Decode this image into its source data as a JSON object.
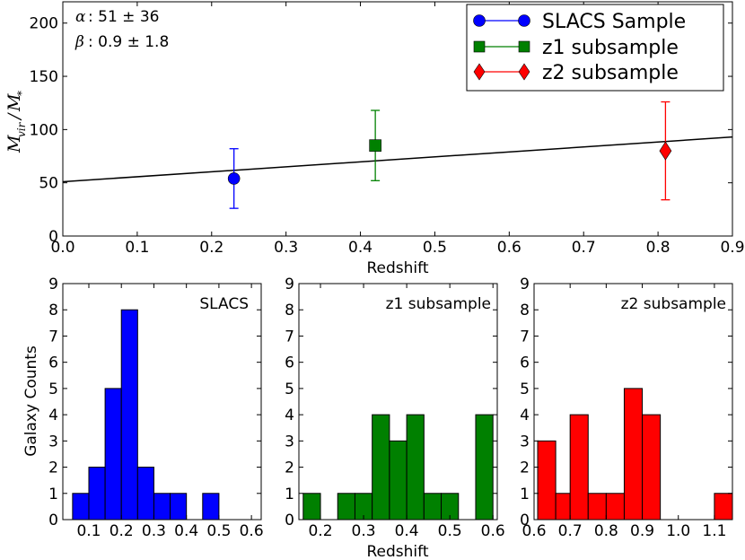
{
  "chart_data": [
    {
      "type": "scatter",
      "title": "",
      "xlabel": "Redshift",
      "ylabel": "M_vir / M_*",
      "xlim": [
        0.0,
        0.9
      ],
      "ylim": [
        0,
        220
      ],
      "xticks": [
        "0.0",
        "0.1",
        "0.2",
        "0.3",
        "0.4",
        "0.5",
        "0.6",
        "0.7",
        "0.8",
        "0.9"
      ],
      "yticks": [
        "0",
        "50",
        "100",
        "150",
        "200"
      ],
      "annotations": {
        "alpha_symbol": "α",
        "alpha_text": ":  51 ±  36",
        "beta_symbol": "β",
        "beta_text": ":  0.9 ±  1.8"
      },
      "fit_line": {
        "alpha": 51,
        "beta": 0.9,
        "intercept_at_0": 51,
        "value_at_0_9": 93
      },
      "series": [
        {
          "name": "SLACS Sample",
          "marker": "circle",
          "color": "#0000ff",
          "x": 0.23,
          "y": 54,
          "err_low": 28,
          "err_high": 28
        },
        {
          "name": "z1 subsample",
          "marker": "square",
          "color": "#008000",
          "x": 0.42,
          "y": 85,
          "err_low": 33,
          "err_high": 33
        },
        {
          "name": "z2 subsample",
          "marker": "diamond",
          "color": "#ff0000",
          "x": 0.81,
          "y": 80,
          "err_low": 46,
          "err_high": 46
        }
      ],
      "legend": [
        "SLACS Sample",
        "z1 subsample",
        "z2 subsample"
      ]
    },
    {
      "type": "bar",
      "title": "SLACS",
      "color": "#0000ff",
      "xlim": [
        0.02,
        0.63
      ],
      "ylim": [
        0,
        9
      ],
      "xticks": [
        "0.1",
        "0.2",
        "0.3",
        "0.4",
        "0.5",
        "0.6"
      ],
      "yticks": [
        "0",
        "1",
        "2",
        "3",
        "4",
        "5",
        "6",
        "7",
        "8",
        "9"
      ],
      "ylabel": "Galaxy Counts",
      "bin_edges": [
        0.05,
        0.1,
        0.15,
        0.2,
        0.25,
        0.3,
        0.35,
        0.4,
        0.45,
        0.5
      ],
      "values": [
        1,
        2,
        5,
        8,
        2,
        1,
        1,
        0,
        1
      ]
    },
    {
      "type": "bar",
      "title": "z1 subsample",
      "color": "#008000",
      "xlabel": "Redshift",
      "xlim": [
        0.15,
        0.61
      ],
      "ylim": [
        0,
        9
      ],
      "xticks": [
        "0.2",
        "0.3",
        "0.4",
        "0.5",
        "0.6"
      ],
      "yticks": [
        "0",
        "1",
        "2",
        "3",
        "4",
        "5",
        "6",
        "7",
        "8",
        "9"
      ],
      "bin_edges": [
        0.16,
        0.2,
        0.24,
        0.28,
        0.32,
        0.36,
        0.4,
        0.44,
        0.48,
        0.52,
        0.56,
        0.6
      ],
      "values": [
        1,
        0,
        1,
        1,
        4,
        3,
        4,
        1,
        1,
        0,
        4
      ]
    },
    {
      "type": "bar",
      "title": "z2 subsample",
      "color": "#ff0000",
      "xlim": [
        0.6,
        1.15
      ],
      "ylim": [
        0,
        9
      ],
      "xticks": [
        "0.6",
        "0.7",
        "0.8",
        "0.9",
        "1.0",
        "1.1"
      ],
      "yticks": [
        "0",
        "1",
        "2",
        "3",
        "4",
        "5",
        "6",
        "7",
        "8",
        "9"
      ],
      "bin_edges": [
        0.61,
        0.66,
        0.7,
        0.75,
        0.8,
        0.85,
        0.9,
        0.95,
        1.0,
        1.05,
        1.1,
        1.15
      ],
      "values": [
        3,
        1,
        4,
        1,
        1,
        5,
        4,
        0,
        0,
        0,
        1
      ]
    }
  ]
}
